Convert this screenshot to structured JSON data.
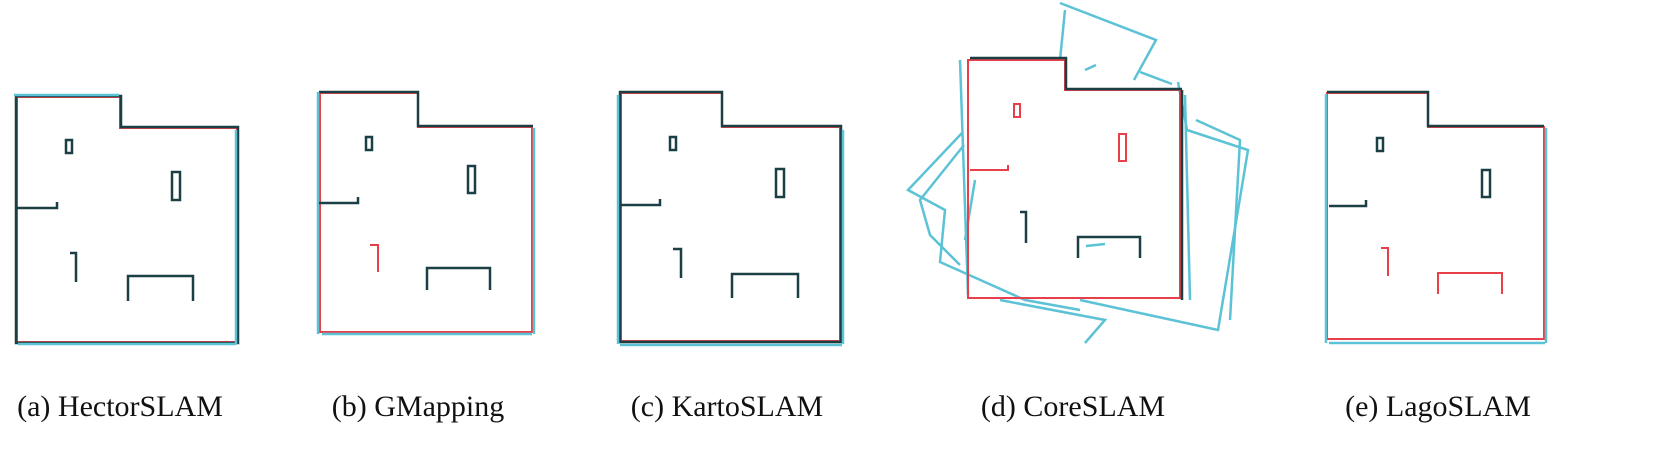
{
  "figure": {
    "panels": [
      {
        "id": "a",
        "caption": "(a) HectorSLAM"
      },
      {
        "id": "b",
        "caption": "(b) GMapping"
      },
      {
        "id": "c",
        "caption": "(c) KartoSLAM"
      },
      {
        "id": "d",
        "caption": "(d) CoreSLAM"
      },
      {
        "id": "e",
        "caption": "(e) LagoSLAM"
      }
    ],
    "colors": {
      "ground_truth": "#e8404a",
      "estimated_map": "#5cc2d6",
      "overlap": "#1a3f44"
    }
  }
}
